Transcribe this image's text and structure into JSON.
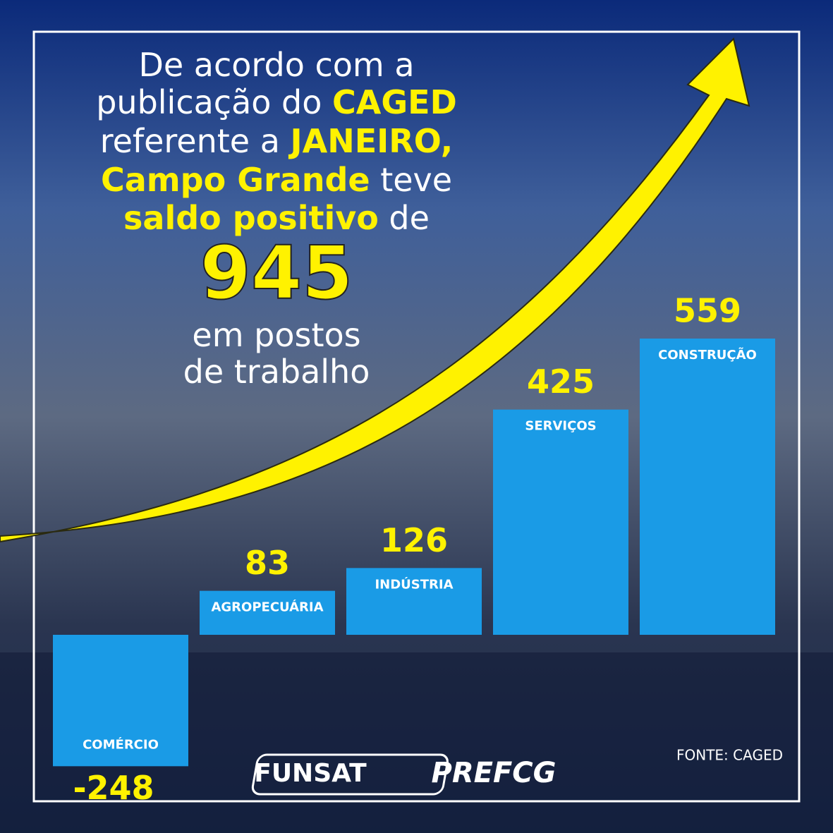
{
  "chart_data": {
    "type": "bar",
    "headline": [
      [
        {
          "text": "De acordo com a",
          "color": "#ffffff"
        }
      ],
      [
        {
          "text": "publicação do ",
          "color": "#ffffff"
        },
        {
          "text": "CAGED",
          "color": "#fff200"
        }
      ],
      [
        {
          "text": "referente a ",
          "color": "#ffffff"
        },
        {
          "text": "JANEIRO,",
          "color": "#fff200"
        }
      ],
      [
        {
          "text": "Campo Grande",
          "color": "#fff200"
        },
        {
          "text": " teve",
          "color": "#ffffff"
        }
      ],
      [
        {
          "text": "saldo positivo",
          "color": "#fff200"
        },
        {
          "text": " de",
          "color": "#ffffff"
        }
      ],
      [
        {
          "text": "945",
          "color": "#fff200"
        }
      ],
      [
        {
          "text": "em postos",
          "color": "#ffffff"
        }
      ],
      [
        {
          "text": "de trabalho",
          "color": "#ffffff"
        }
      ]
    ],
    "categories": [
      "COMÉRCIO",
      "AGROPECUÁRIA",
      "INDÚSTRIA",
      "SERVIÇOS",
      "CONSTRUÇÃO"
    ],
    "values": [
      -248,
      83,
      126,
      425,
      559
    ],
    "color": "#1a9be6",
    "value_color": "#fff200",
    "footer": {
      "left": "FUNSAT",
      "logo": "PREFCG",
      "source": "FONTE: CAGED"
    }
  }
}
